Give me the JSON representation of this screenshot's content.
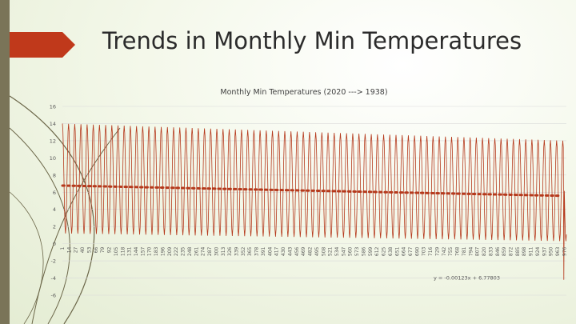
{
  "slide": {
    "title": "Trends in Monthly Min Temperatures"
  },
  "colors": {
    "series": "#b5391c",
    "trendline": "#b5391c",
    "accent_ribbon": "#c0391b",
    "side_band": "#7a7458",
    "grid": "#d9d9d9"
  },
  "chart_data": {
    "type": "line",
    "title": "Monthly Min Temperatures (2020 ---> 1938)",
    "xlabel": "",
    "ylabel": "",
    "ylim": [
      -6,
      16
    ],
    "yticks": [
      -6,
      -4,
      -2,
      0,
      2,
      4,
      6,
      8,
      10,
      12,
      14,
      16
    ],
    "grid": true,
    "legend": "none",
    "xticks": [
      1,
      14,
      27,
      40,
      53,
      66,
      79,
      92,
      105,
      118,
      131,
      144,
      157,
      170,
      183,
      196,
      209,
      222,
      235,
      248,
      261,
      274,
      287,
      300,
      313,
      326,
      339,
      352,
      365,
      378,
      391,
      404,
      417,
      430,
      443,
      456,
      469,
      482,
      495,
      508,
      521,
      534,
      547,
      560,
      573,
      586,
      599,
      612,
      625,
      638,
      651,
      664,
      677,
      690,
      703,
      716,
      729,
      742,
      755,
      768,
      781,
      794,
      807,
      820,
      833,
      846,
      859,
      872,
      885,
      898,
      911,
      924,
      937,
      950,
      963,
      976
    ],
    "x_range": [
      1,
      980
    ],
    "series": [
      {
        "style": "seasonal oscillation, 12-month period",
        "annual_high_start": 14.0,
        "annual_high_end": 12.0,
        "annual_low_start": 1.2,
        "annual_low_end": 0.3,
        "min_spike": -4.2
      }
    ],
    "trendline": {
      "style": "dotted",
      "slope": -0.00123,
      "intercept": 6.77803,
      "label": "y = -0.00123x + 6.77803"
    }
  }
}
